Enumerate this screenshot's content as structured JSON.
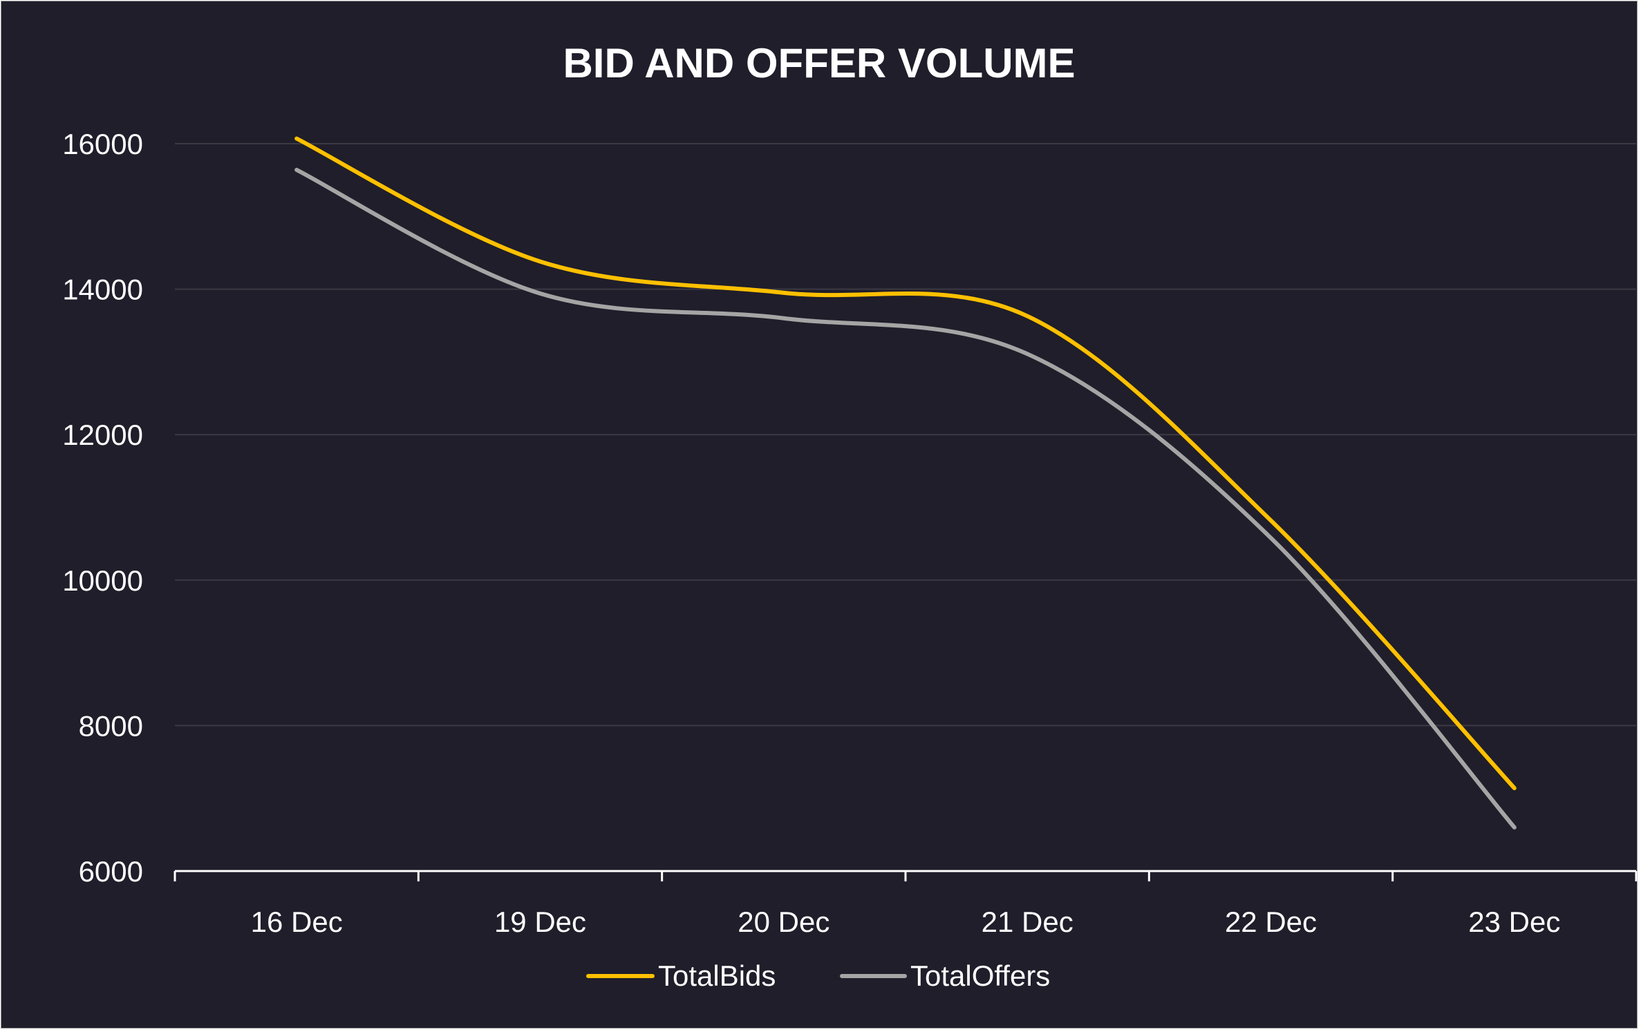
{
  "chart_data": {
    "type": "line",
    "title": "BID AND OFFER VOLUME",
    "xlabel": "",
    "ylabel": "",
    "categories": [
      "16 Dec",
      "19 Dec",
      "20 Dec",
      "21 Dec",
      "22 Dec",
      "23 Dec"
    ],
    "ylim": [
      6000,
      16000
    ],
    "yticks": [
      "6000",
      "8000",
      "10000",
      "12000",
      "14000",
      "16000"
    ],
    "grid": true,
    "smooth": true,
    "legend_position": "bottom",
    "series": [
      {
        "name": "TotalBids",
        "color": "#ffc000",
        "values": [
          16070,
          14380,
          13950,
          13630,
          10820,
          7140
        ]
      },
      {
        "name": "TotalOffers",
        "color": "#a5a5a5",
        "values": [
          15640,
          13940,
          13600,
          13110,
          10580,
          6600
        ]
      }
    ]
  },
  "colors": {
    "background": "#1f1e2a",
    "grid": "#3b3a44",
    "axis": "#ffffff",
    "text": "#ffffff"
  }
}
